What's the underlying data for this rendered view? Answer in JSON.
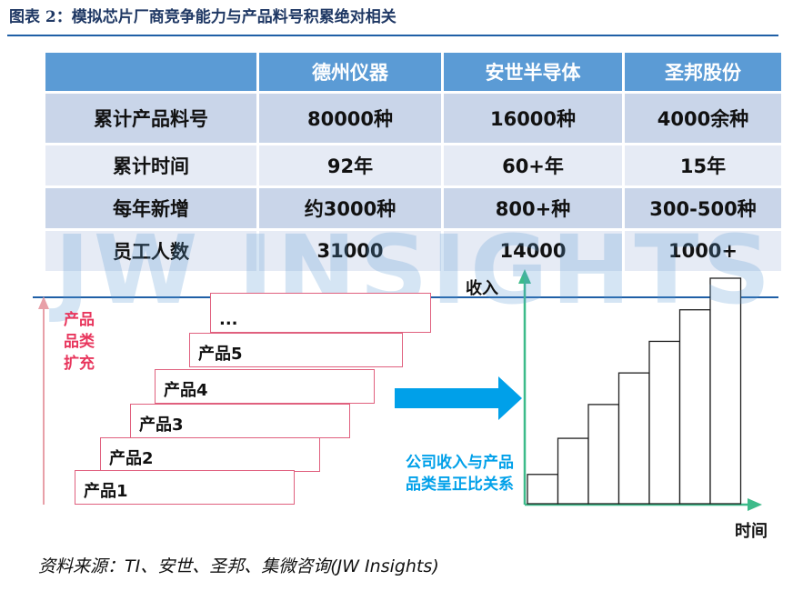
{
  "figure": {
    "title": "图表 2：模拟芯片厂商竞争能力与产品料号积累绝对相关",
    "source": "资料来源：TI、安世、圣邦、集微咨询(JW Insights)",
    "watermark": "JW INSIGHTS"
  },
  "table": {
    "headers": [
      "",
      "德州仪器",
      "安世半导体",
      "圣邦股份"
    ],
    "rows": [
      {
        "label": "累计产品料号",
        "values": [
          "80000种",
          "16000种",
          "4000余种"
        ]
      },
      {
        "label": "累计时间",
        "values": [
          "92年",
          "60+年",
          "15年"
        ]
      },
      {
        "label": "每年新增",
        "values": [
          "约3000种",
          "800+种",
          "300-500种"
        ]
      },
      {
        "label": "员工人数",
        "values": [
          "31000",
          "14000",
          "1000+"
        ]
      }
    ]
  },
  "diagram": {
    "left_axis_label": "产品品类扩充",
    "products": [
      "产品1",
      "产品2",
      "产品3",
      "产品4",
      "产品5",
      "..."
    ],
    "relation_text": "公司收入与产品品类呈正比关系",
    "y_label": "收入",
    "x_label": "时间",
    "bar_levels": [
      0.13,
      0.29,
      0.44,
      0.58,
      0.72,
      0.86,
      1.0
    ],
    "colors": {
      "arrow": "#00a0e9",
      "axis": "#3dbb8a",
      "step_border": "#e0607e",
      "label_red": "#e8365d",
      "label_blue": "#00a0e9"
    }
  }
}
